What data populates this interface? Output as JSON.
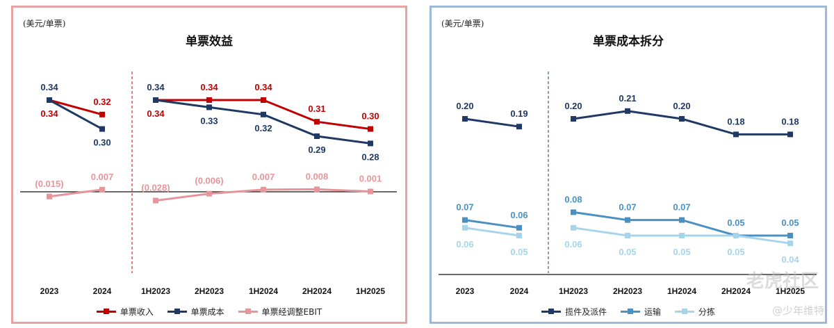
{
  "left_panel": {
    "unit": "(美元/单票)",
    "title": "单票效益",
    "border_color": "#e8a2a2",
    "legend": [
      {
        "label": "单票收入",
        "color": "#c00000"
      },
      {
        "label": "单票成本",
        "color": "#1f3864"
      },
      {
        "label": "单票经调整EBIT",
        "color": "#e6959a"
      }
    ]
  },
  "right_panel": {
    "unit": "(美元/单票)",
    "title": "单票成本拆分",
    "border_color": "#9bb9d8",
    "legend": [
      {
        "label": "揽件及派件",
        "color": "#1f3864"
      },
      {
        "label": "运输",
        "color": "#4a90c2"
      },
      {
        "label": "分拣",
        "color": "#a6d4ea"
      }
    ]
  },
  "watermark": {
    "main": "老虎社区",
    "user": "@少年维特"
  },
  "chart_data": [
    {
      "type": "line",
      "title": "单票效益",
      "unit_label": "(美元/单票)",
      "categories": [
        "2023",
        "2024",
        "1H2023",
        "2H2023",
        "1H2024",
        "2H2024",
        "1H2025"
      ],
      "groups": [
        [
          "2023",
          "2024"
        ],
        [
          "1H2023",
          "2H2023",
          "1H2024",
          "2H2024",
          "1H2025"
        ]
      ],
      "series": [
        {
          "name": "单票收入",
          "color": "#c00000",
          "values": [
            0.34,
            0.32,
            0.34,
            0.34,
            0.34,
            0.31,
            0.3
          ],
          "labels": [
            "0.34",
            "0.32",
            "0.34",
            "0.34",
            "0.34",
            "0.31",
            "0.30"
          ]
        },
        {
          "name": "单票成本",
          "color": "#1f3864",
          "values": [
            0.34,
            0.3,
            0.34,
            0.33,
            0.32,
            0.29,
            0.28
          ],
          "labels": [
            "0.34",
            "0.30",
            "0.34",
            "0.33",
            "0.32",
            "0.29",
            "0.28"
          ]
        },
        {
          "name": "单票经调整EBIT",
          "color": "#e6959a",
          "values": [
            -0.015,
            0.007,
            -0.028,
            -0.006,
            0.007,
            0.008,
            0.001
          ],
          "labels": [
            "(0.015)",
            "0.007",
            "(0.028)",
            "(0.006)",
            "0.007",
            "0.008",
            "0.001"
          ]
        }
      ],
      "baseline": 0,
      "group_divider": "dashed"
    },
    {
      "type": "line",
      "title": "单票成本拆分",
      "unit_label": "(美元/单票)",
      "categories": [
        "2023",
        "2024",
        "1H2023",
        "2H2023",
        "1H2024",
        "2H2024",
        "1H2025"
      ],
      "groups": [
        [
          "2023",
          "2024"
        ],
        [
          "1H2023",
          "2H2023",
          "1H2024",
          "2H2024",
          "1H2025"
        ]
      ],
      "series": [
        {
          "name": "揽件及派件",
          "color": "#1f3864",
          "values": [
            0.2,
            0.19,
            0.2,
            0.21,
            0.2,
            0.18,
            0.18
          ],
          "labels": [
            "0.20",
            "0.19",
            "0.20",
            "0.21",
            "0.20",
            "0.18",
            "0.18"
          ]
        },
        {
          "name": "运输",
          "color": "#4a90c2",
          "values": [
            0.07,
            0.06,
            0.08,
            0.07,
            0.07,
            0.05,
            0.05
          ],
          "labels": [
            "0.07",
            "0.06",
            "0.08",
            "0.07",
            "0.07",
            "0.05",
            "0.05"
          ]
        },
        {
          "name": "分拣",
          "color": "#a6d4ea",
          "values": [
            0.06,
            0.05,
            0.06,
            0.05,
            0.05,
            0.05,
            0.04
          ],
          "labels": [
            "0.06",
            "0.05",
            "0.06",
            "0.05",
            "0.05",
            "0.05",
            "0.04"
          ]
        }
      ],
      "baseline": 0,
      "group_divider": "dashed"
    }
  ]
}
